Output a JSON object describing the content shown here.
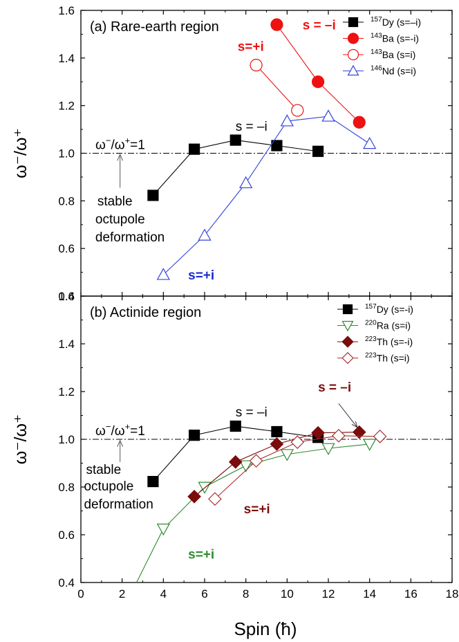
{
  "chart_data": [
    {
      "panel": "a",
      "type": "line",
      "title": "(a) Rare-earth region",
      "ylabel": "ω⁻/ω⁺",
      "xlim": [
        0,
        18
      ],
      "ylim": [
        0.4,
        1.6
      ],
      "x_ticks": [
        0,
        2,
        4,
        6,
        8,
        10,
        12,
        14,
        16,
        18
      ],
      "y_ticks": [
        "0.4",
        "0.6",
        "0.8",
        "1.0",
        "1.2",
        "1.4",
        "1.6"
      ],
      "reference_line": {
        "y": 1.0,
        "label_base": "ω",
        "label_sup1": "−",
        "label_mid": "/ω",
        "label_sup2": "+",
        "label_end": "=1"
      },
      "series": [
        {
          "name": "Dy (s=–i)",
          "mass": "157",
          "color": "#000000",
          "marker": "square",
          "filled": true,
          "x": [
            3.5,
            5.5,
            7.5,
            9.5,
            11.5
          ],
          "y": [
            0.823,
            1.017,
            1.055,
            1.032,
            1.008
          ]
        },
        {
          "name": "Ba (s=-i)",
          "mass": "143",
          "color": "#ee1111",
          "marker": "circle",
          "filled": true,
          "x": [
            9.5,
            11.5,
            13.5
          ],
          "y": [
            1.54,
            1.3,
            1.13
          ]
        },
        {
          "name": "Ba (s=i)",
          "mass": "143",
          "color": "#ee1111",
          "marker": "circle",
          "filled": false,
          "x": [
            8.5,
            10.5
          ],
          "y": [
            1.37,
            1.18
          ]
        },
        {
          "name": "Nd (s=i)",
          "mass": "146",
          "color": "#3344dd",
          "marker": "triangle-up",
          "filled": false,
          "x": [
            4,
            6,
            8,
            10,
            12,
            14
          ],
          "y": [
            0.49,
            0.655,
            0.875,
            1.135,
            1.155,
            1.04
          ]
        }
      ],
      "annotations": [
        {
          "text": "s = –i",
          "color": "#ee1111",
          "x": 10.75,
          "y": 1.52,
          "bold": true
        },
        {
          "text": "s=+i",
          "color": "#ee1111",
          "x": 7.6,
          "y": 1.43,
          "bold": true
        },
        {
          "text": "s = –i",
          "color": "#000000",
          "x": 7.5,
          "y": 1.095,
          "bold": false
        },
        {
          "text": "s=+i",
          "color": "#1a2ad0",
          "x": 5.2,
          "y": 0.47,
          "bold": true
        },
        {
          "text": "stable",
          "color": "#000000",
          "x": 0.8,
          "y": 0.78,
          "bold": false
        },
        {
          "text": "octupole",
          "color": "#000000",
          "x": 0.7,
          "y": 0.705,
          "bold": false
        },
        {
          "text": "deformation",
          "color": "#000000",
          "x": 0.7,
          "y": 0.63,
          "bold": false
        }
      ],
      "arrow": {
        "x": 1.9,
        "y_from": 0.855,
        "y_to": 0.995
      }
    },
    {
      "panel": "b",
      "type": "line",
      "title": "(b) Actinide region",
      "xlabel": "Spin (ħ)",
      "ylabel": "ω⁻/ω⁺",
      "xlim": [
        0,
        18
      ],
      "ylim": [
        0.4,
        1.6
      ],
      "x_ticks": [
        0,
        2,
        4,
        6,
        8,
        10,
        12,
        14,
        16,
        18
      ],
      "y_ticks": [
        "0.4",
        "0.6",
        "0.8",
        "1.0",
        "1.2",
        "1.4",
        "1.6"
      ],
      "reference_line": {
        "y": 1.0,
        "label_base": "ω",
        "label_sup1": "−",
        "label_mid": "/ω",
        "label_sup2": "+",
        "label_end": "=1"
      },
      "series": [
        {
          "name": "Dy (s=-i)",
          "mass": "157",
          "color": "#000000",
          "marker": "square",
          "filled": true,
          "x": [
            3.5,
            5.5,
            7.5,
            9.5,
            11.5
          ],
          "y": [
            0.823,
            1.017,
            1.055,
            1.032,
            1.008
          ]
        },
        {
          "name": "Ra (s=i)",
          "mass": "220",
          "color": "#2e8b2e",
          "marker": "triangle-down",
          "filled": false,
          "x": [
            4,
            6,
            8,
            10,
            12,
            14
          ],
          "y": [
            0.625,
            0.8,
            0.89,
            0.937,
            0.962,
            0.98
          ],
          "line_extension": {
            "x": 2.7,
            "y": 0.4
          }
        },
        {
          "name": "Th (s=-i)",
          "mass": "223",
          "color": "#7a0c0c",
          "marker": "diamond",
          "filled": true,
          "x": [
            5.5,
            7.5,
            9.5,
            11.5,
            13.5
          ],
          "y": [
            0.76,
            0.905,
            0.98,
            1.027,
            1.03
          ]
        },
        {
          "name": "Th (s=i)",
          "mass": "223",
          "color": "#a83030",
          "marker": "diamond",
          "filled": false,
          "x": [
            6.5,
            8.5,
            10.5,
            12.5,
            14.5
          ],
          "y": [
            0.75,
            0.91,
            0.988,
            1.015,
            1.012
          ]
        }
      ],
      "annotations": [
        {
          "text": "s = –i",
          "color": "#7a0c0c",
          "x": 11.5,
          "y": 1.2,
          "bold": true
        },
        {
          "text": "s = –i",
          "color": "#000000",
          "x": 7.5,
          "y": 1.095,
          "bold": false
        },
        {
          "text": "s=+i",
          "color": "#7a0c0c",
          "x": 7.9,
          "y": 0.69,
          "bold": true
        },
        {
          "text": "s=+i",
          "color": "#2e8b2e",
          "x": 5.2,
          "y": 0.5,
          "bold": true
        },
        {
          "text": "stable",
          "color": "#000000",
          "x": 0.25,
          "y": 0.855,
          "bold": false
        },
        {
          "text": "octupole",
          "color": "#000000",
          "x": 0.15,
          "y": 0.785,
          "bold": false
        },
        {
          "text": "deformation",
          "color": "#000000",
          "x": 0.15,
          "y": 0.71,
          "bold": false
        }
      ],
      "arrow": {
        "x": 1.9,
        "y_from": 0.905,
        "y_to": 0.995
      },
      "arrow_label": {
        "x_from": 12.5,
        "y_from": 1.15,
        "x_to": 13.4,
        "y_to": 1.05
      }
    }
  ]
}
